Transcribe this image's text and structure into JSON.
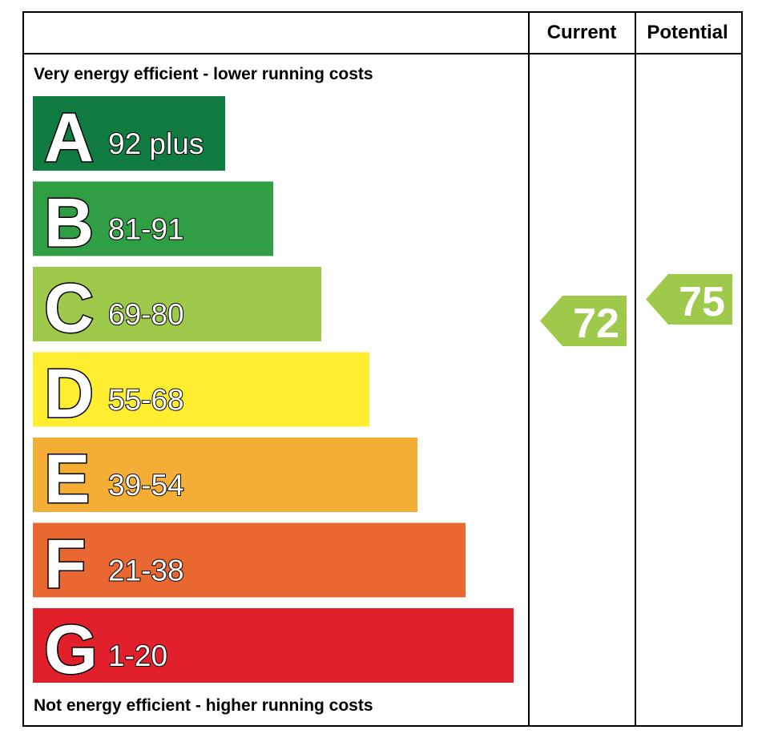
{
  "chart_data": {
    "type": "bar",
    "header": {
      "current": "Current",
      "potential": "Potential"
    },
    "top_label": "Very energy efficient - lower running costs",
    "bottom_label": "Not energy efficient - higher running costs",
    "bands": [
      {
        "letter": "A",
        "range": "92 plus",
        "color": "#107c41"
      },
      {
        "letter": "B",
        "range": "81-91",
        "color": "#2f9e44"
      },
      {
        "letter": "C",
        "range": "69-80",
        "color": "#9ec94a"
      },
      {
        "letter": "D",
        "range": "55-68",
        "color": "#ffed2f"
      },
      {
        "letter": "E",
        "range": "39-54",
        "color": "#f5ae35"
      },
      {
        "letter": "F",
        "range": "21-38",
        "color": "#e96831"
      },
      {
        "letter": "G",
        "range": "1-20",
        "color": "#e1202c"
      }
    ],
    "current": {
      "value": 72,
      "band": "C",
      "color": "#9ec94a"
    },
    "potential": {
      "value": 75,
      "band": "C",
      "color": "#9ec94a"
    }
  }
}
